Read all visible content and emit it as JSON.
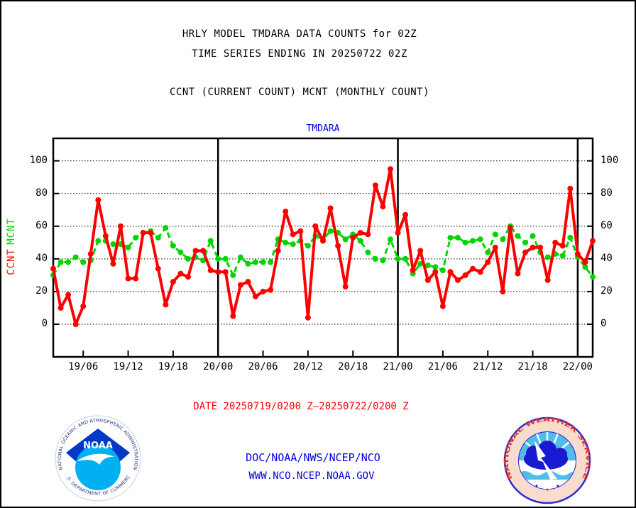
{
  "titles": {
    "line1": "HRLY MODEL TMDARA DATA COUNTS for 02Z",
    "line2": "TIME SERIES ENDING IN 20250722 02Z",
    "line3": "CCNT (CURRENT COUNT) MCNT (MONTHLY COUNT)",
    "chart_label": "TMDARA"
  },
  "axis": {
    "y_labels": [
      "100",
      "80",
      "60",
      "40",
      "20",
      "0"
    ],
    "ccnt_label": "CCNT",
    "mcnt_label": "MCNT"
  },
  "footer": {
    "date_range": "DATE 20250719/0200 Z—20250722/0200 Z",
    "org": "DOC/NOAA/NWS/NCEP/NCO",
    "url": "WWW.NCO.NCEP.NOAA.GOV"
  },
  "logos": {
    "noaa": {
      "acronym": "NOAA",
      "ring_top": "NATIONAL OCEANIC AND ATMOSPHERIC ADMINISTRATION",
      "ring_bottom": "U.S. DEPARTMENT OF COMMERCE"
    },
    "nws": {
      "ring": "NATIONAL WEATHER SERVICE",
      "stars": "★ ★ ★"
    }
  },
  "colors": {
    "ccnt": "#ff0000",
    "mcnt": "#00d500",
    "blue_text": "#0000e0",
    "date_red": "#ff0000",
    "grid_black": "#000000"
  },
  "chart_data": {
    "type": "line",
    "title": "TMDARA",
    "xlabel": "",
    "ylabel": "",
    "ylim": [
      0,
      100
    ],
    "ytick_step": 20,
    "grid": true,
    "x_tick_labels": [
      "19/06",
      "19/12",
      "19/18",
      "20/00",
      "20/06",
      "20/12",
      "20/18",
      "21/00",
      "21/06",
      "21/12",
      "21/18",
      "22/00"
    ],
    "x_hours": [
      "19/02",
      "19/03",
      "19/04",
      "19/05",
      "19/06",
      "19/07",
      "19/08",
      "19/09",
      "19/10",
      "19/11",
      "19/12",
      "19/13",
      "19/14",
      "19/15",
      "19/16",
      "19/17",
      "19/18",
      "19/19",
      "19/20",
      "19/21",
      "19/22",
      "19/23",
      "20/00",
      "20/01",
      "20/02",
      "20/03",
      "20/04",
      "20/05",
      "20/06",
      "20/07",
      "20/08",
      "20/09",
      "20/10",
      "20/11",
      "20/12",
      "20/13",
      "20/14",
      "20/15",
      "20/16",
      "20/17",
      "20/18",
      "20/19",
      "20/20",
      "20/21",
      "20/22",
      "20/23",
      "21/00",
      "21/01",
      "21/02",
      "21/03",
      "21/04",
      "21/05",
      "21/06",
      "21/07",
      "21/08",
      "21/09",
      "21/10",
      "21/11",
      "21/12",
      "21/13",
      "21/14",
      "21/15",
      "21/16",
      "21/17",
      "21/18",
      "21/19",
      "21/20",
      "21/21",
      "21/22",
      "21/23",
      "22/00",
      "22/01",
      "22/02"
    ],
    "series": [
      {
        "name": "CCNT",
        "color": "#ff0000",
        "style": "solid",
        "values": [
          34,
          10,
          18,
          0,
          11,
          43,
          76,
          54,
          37,
          60,
          28,
          28,
          56,
          56,
          34,
          12,
          26,
          31,
          29,
          45,
          45,
          33,
          32,
          32,
          5,
          24,
          26,
          17,
          20,
          21,
          45,
          69,
          55,
          57,
          4,
          60,
          51,
          71,
          48,
          23,
          53,
          56,
          55,
          85,
          72,
          95,
          56,
          67,
          33,
          45,
          27,
          32,
          11,
          32,
          27,
          30,
          34,
          32,
          38,
          47,
          20,
          59,
          31,
          44,
          47,
          47,
          27,
          50,
          48,
          83,
          43,
          38,
          51
        ]
      },
      {
        "name": "MCNT",
        "color": "#00d500",
        "style": "dashed",
        "values": [
          30,
          38,
          38,
          41,
          38,
          39,
          51,
          51,
          49,
          49,
          47,
          53,
          56,
          57,
          53,
          59,
          48,
          44,
          40,
          41,
          39,
          51,
          40,
          40,
          30,
          41,
          37,
          38,
          38,
          38,
          52,
          50,
          49,
          51,
          48,
          54,
          52,
          57,
          56,
          52,
          55,
          51,
          44,
          40,
          39,
          52,
          40,
          40,
          31,
          37,
          36,
          35,
          33,
          53,
          53,
          50,
          51,
          52,
          44,
          55,
          52,
          60,
          54,
          50,
          54,
          44,
          41,
          43,
          42,
          53,
          41,
          35,
          29
        ]
      }
    ]
  }
}
